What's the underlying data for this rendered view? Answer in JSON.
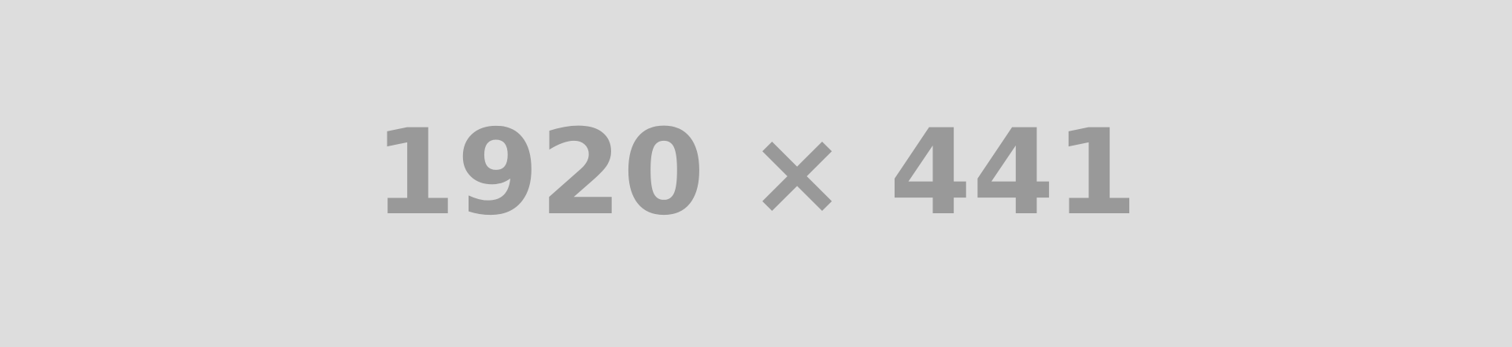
{
  "placeholder": {
    "label": "1920 × 441",
    "background_color": "#dddddd",
    "text_color": "#999999"
  }
}
